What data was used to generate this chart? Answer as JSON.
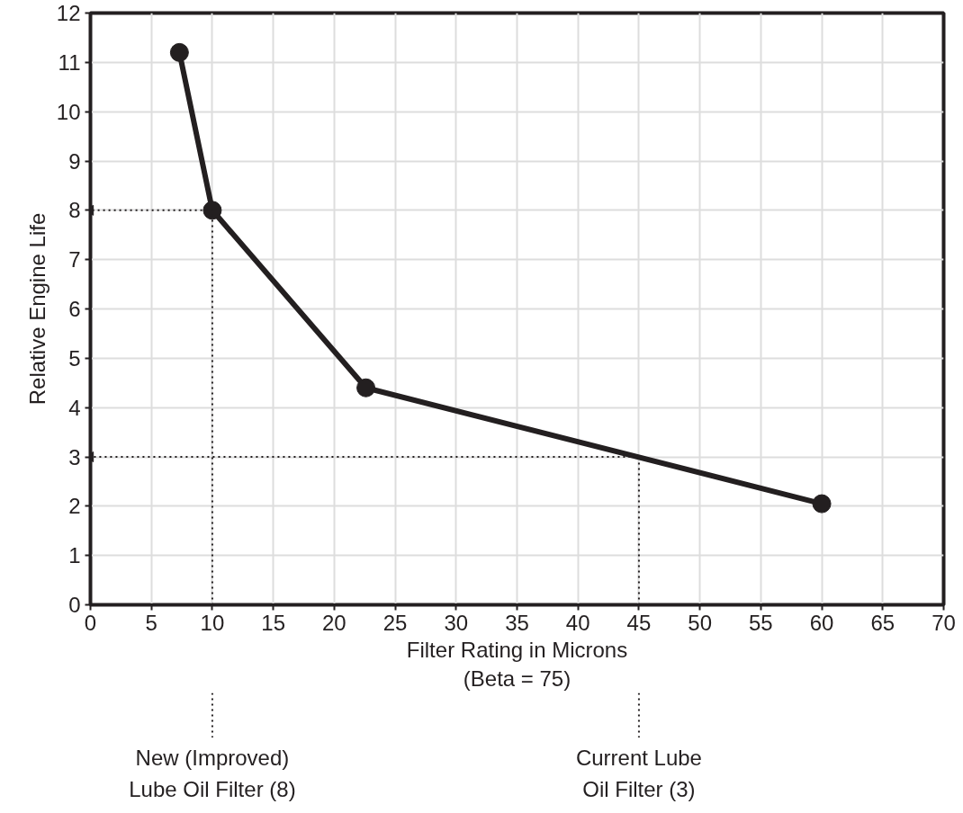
{
  "chart_data": {
    "type": "line",
    "xlabel": "Filter Rating in Microns\n(Beta = 75)",
    "ylabel": "Relative Engine Life",
    "x": [
      7.3,
      10,
      22.6,
      60
    ],
    "series": [
      {
        "color": "#231f20",
        "values": [
          11.2,
          8,
          4.4,
          2.05
        ],
        "marker": "circle",
        "line_style": "solid"
      },
      {
        "color": "#231f20",
        "x": [
          10,
          10,
          0
        ],
        "values": [
          0,
          8,
          8
        ],
        "marker": "none",
        "line_style": "dotted"
      },
      {
        "color": "#231f20",
        "x": [
          45,
          45,
          0
        ],
        "values": [
          0,
          3,
          3
        ],
        "marker": "none",
        "line_style": "dotted"
      }
    ],
    "xlim": [
      0,
      70
    ],
    "xticks": [
      0,
      5,
      10,
      15,
      20,
      25,
      30,
      35,
      40,
      45,
      50,
      55,
      60,
      65,
      70
    ],
    "ylim": [
      0,
      12
    ],
    "yticks": [
      0,
      1,
      2,
      3,
      4,
      5,
      6,
      7,
      8,
      9,
      10,
      11,
      12
    ],
    "grid": true,
    "annotations": [
      "New (Improved)\nLube Oil Filter (8)",
      "Current Lube\nOil Filter (3)"
    ]
  }
}
